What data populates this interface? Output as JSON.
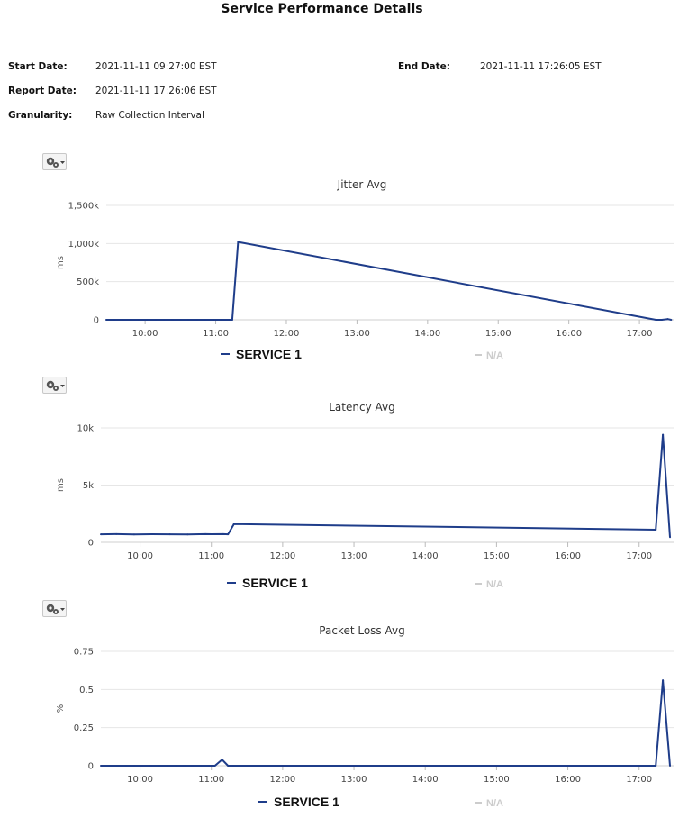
{
  "report": {
    "title": "Service Performance Details",
    "start_label": "Start Date:",
    "start_value": "2021-11-11 09:27:00 EST",
    "end_label": "End Date:",
    "end_value": "2021-11-11 17:26:05 EST",
    "report_label": "Report Date:",
    "report_value": "2021-11-11 17:26:06 EST",
    "granularity_label": "Granularity:",
    "granularity_value": "Raw Collection Interval"
  },
  "icons": {
    "menu": "gear-icon",
    "dropdown": "caret-down-icon"
  },
  "colors": {
    "series": "#1f3d8a",
    "grid": "#e6e6e6",
    "na": "#cccccc"
  },
  "chart_data": [
    {
      "type": "line",
      "title": "Jitter Avg",
      "ylabel": "ms",
      "ylim": [
        0,
        1500000
      ],
      "yticks": [
        0,
        500000,
        1000000,
        1500000
      ],
      "ytick_labels": [
        "0",
        "500k",
        "1,000k",
        "1,500k"
      ],
      "xlim": [
        "09:27",
        "17:29"
      ],
      "xticks": [
        "10:00",
        "11:00",
        "12:00",
        "13:00",
        "14:00",
        "15:00",
        "16:00",
        "17:00"
      ],
      "legend": [
        "SERVICE 1",
        "N/A"
      ],
      "series": [
        {
          "name": "SERVICE 1",
          "x": [
            "09:27",
            "09:34",
            "09:41",
            "09:48",
            "09:55",
            "10:02",
            "10:09",
            "10:16",
            "10:23",
            "10:30",
            "10:37",
            "10:44",
            "10:51",
            "10:58",
            "11:05",
            "11:12",
            "11:14",
            "11:19",
            "17:14",
            "17:19",
            "17:24",
            "17:27"
          ],
          "y": [
            0,
            0,
            0,
            0,
            0,
            0,
            0,
            0,
            0,
            0,
            0,
            0,
            0,
            0,
            0,
            0,
            0,
            1020000,
            0,
            0,
            10000,
            0
          ]
        }
      ]
    },
    {
      "type": "line",
      "title": "Latency Avg",
      "ylabel": "ms",
      "ylim": [
        0,
        10000
      ],
      "yticks": [
        0,
        5000,
        10000
      ],
      "ytick_labels": [
        "0",
        "5k",
        "10k"
      ],
      "xlim": [
        "09:27",
        "17:29"
      ],
      "xticks": [
        "10:00",
        "11:00",
        "12:00",
        "13:00",
        "14:00",
        "15:00",
        "16:00",
        "17:00"
      ],
      "legend": [
        "SERVICE 1",
        "N/A"
      ],
      "series": [
        {
          "name": "SERVICE 1",
          "x": [
            "09:27",
            "09:40",
            "09:55",
            "10:10",
            "10:25",
            "10:40",
            "10:55",
            "11:00",
            "11:10",
            "11:14",
            "11:19",
            "17:14",
            "17:20",
            "17:26"
          ],
          "y": [
            700,
            720,
            690,
            710,
            700,
            690,
            720,
            710,
            720,
            700,
            1600,
            1100,
            9400,
            450
          ]
        }
      ]
    },
    {
      "type": "line",
      "title": "Packet Loss Avg",
      "ylabel": "%",
      "ylim": [
        0,
        0.75
      ],
      "yticks": [
        0,
        0.25,
        0.5,
        0.75
      ],
      "ytick_labels": [
        "0",
        "0.25",
        "0.5",
        "0.75"
      ],
      "xlim": [
        "09:27",
        "17:29"
      ],
      "xticks": [
        "10:00",
        "11:00",
        "12:00",
        "13:00",
        "14:00",
        "15:00",
        "16:00",
        "17:00"
      ],
      "legend": [
        "SERVICE 1",
        "N/A"
      ],
      "series": [
        {
          "name": "SERVICE 1",
          "x": [
            "09:27",
            "09:34",
            "09:41",
            "09:48",
            "09:55",
            "10:02",
            "10:09",
            "10:16",
            "10:23",
            "10:30",
            "10:37",
            "10:44",
            "10:51",
            "10:58",
            "11:03",
            "11:09",
            "11:14",
            "11:19",
            "17:14",
            "17:20",
            "17:26"
          ],
          "y": [
            0,
            0,
            0,
            0,
            0,
            0,
            0,
            0,
            0,
            0,
            0,
            0,
            0,
            0,
            0,
            0.04,
            0,
            0,
            0,
            0.56,
            0
          ]
        }
      ]
    }
  ]
}
